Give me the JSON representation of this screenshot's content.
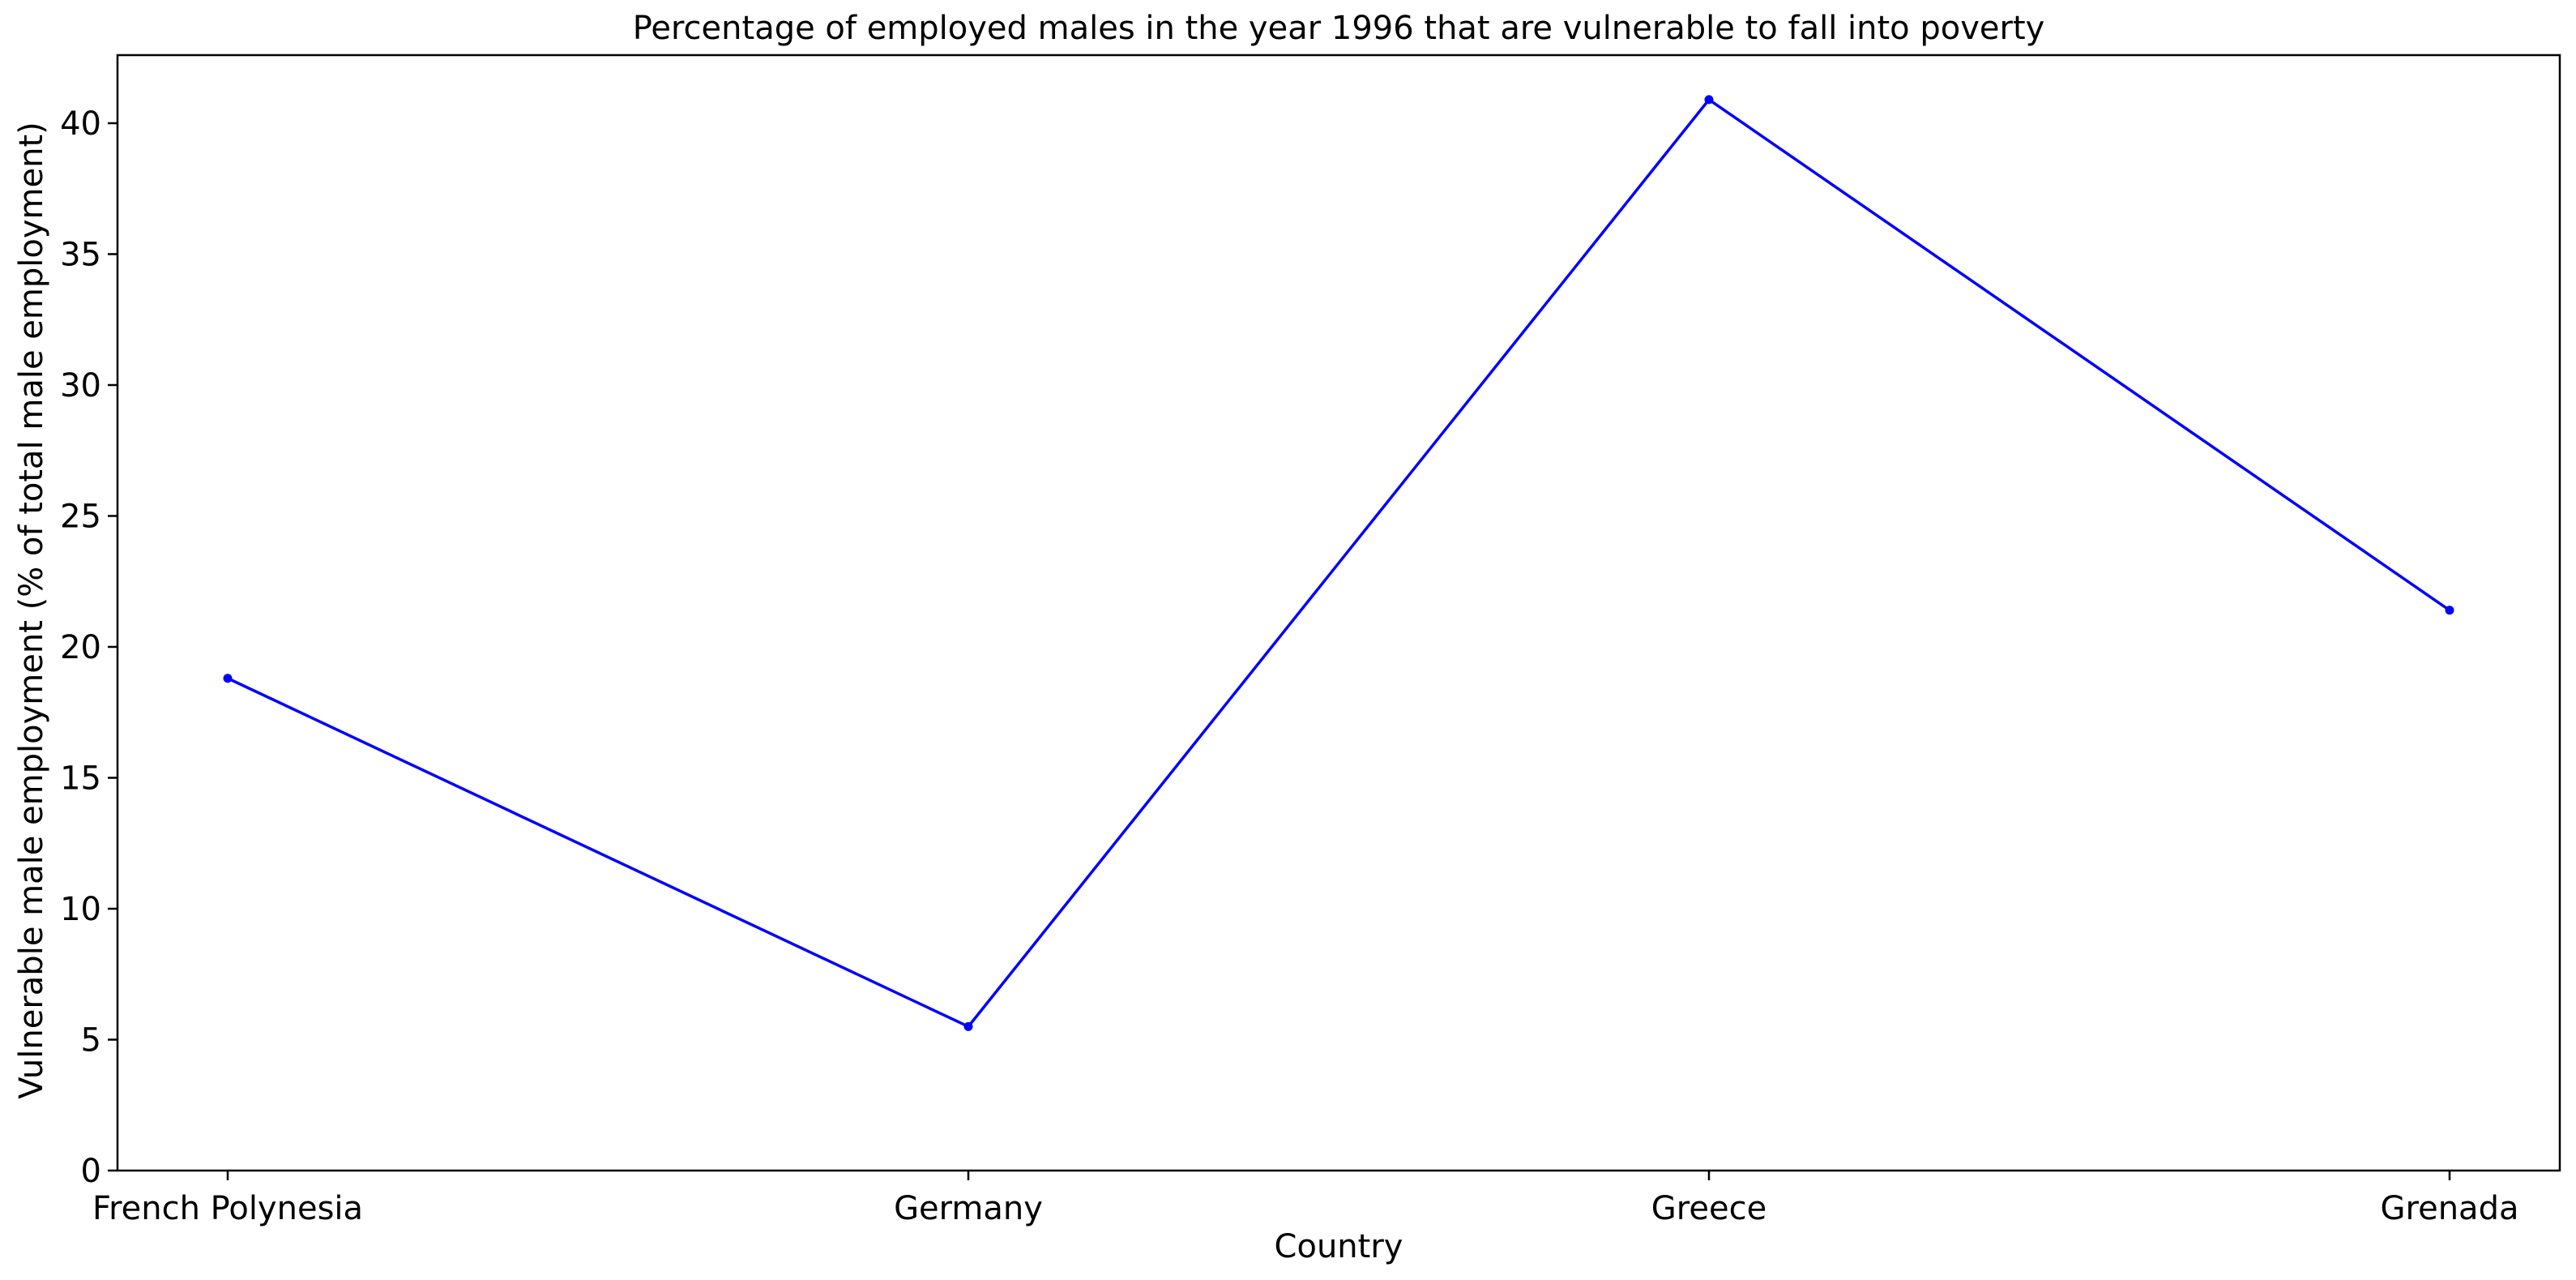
{
  "chart_data": {
    "type": "line",
    "title": "Percentage of employed males in the year 1996 that are vulnerable to fall into poverty",
    "xlabel": "Country",
    "ylabel": "Vulnerable male employment (% of total male employment)",
    "categories": [
      "French Polynesia",
      "Germany",
      "Greece",
      "Grenada"
    ],
    "series": [
      {
        "name": "Vulnerable male employment",
        "values": [
          18.8,
          5.5,
          40.9,
          21.4
        ],
        "color": "#0000ff"
      }
    ],
    "ylim": [
      0,
      42.6
    ],
    "yticks": [
      0,
      5,
      10,
      15,
      20,
      25,
      30,
      35,
      40
    ],
    "grid": false,
    "legend": "none"
  }
}
